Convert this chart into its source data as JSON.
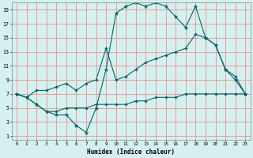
{
  "xlabel": "Humidex (Indice chaleur)",
  "bg_color": "#d6f0f0",
  "grid_color": "#e89090",
  "line_color": "#006666",
  "xlim": [
    -0.5,
    23.5
  ],
  "ylim": [
    0.5,
    20.0
  ],
  "xticks": [
    0,
    1,
    2,
    3,
    4,
    5,
    6,
    7,
    8,
    9,
    10,
    11,
    12,
    13,
    14,
    15,
    16,
    17,
    18,
    19,
    20,
    21,
    22,
    23
  ],
  "yticks": [
    1,
    3,
    5,
    7,
    9,
    11,
    13,
    15,
    17,
    19
  ],
  "line1_x": [
    0,
    1,
    2,
    3,
    4,
    5,
    6,
    7,
    8,
    9,
    10,
    11,
    12,
    13,
    14,
    15,
    16,
    17,
    18,
    19,
    20,
    21,
    22,
    23
  ],
  "line1_y": [
    7,
    6.5,
    5.5,
    4.5,
    4.0,
    4.0,
    2.5,
    1.5,
    5.0,
    10.5,
    18.5,
    19.5,
    20.0,
    19.5,
    20.0,
    19.5,
    18.0,
    16.5,
    19.5,
    15.0,
    14.0,
    10.5,
    9.0,
    7.0
  ],
  "line2_x": [
    0,
    1,
    2,
    3,
    4,
    5,
    6,
    7,
    8,
    9,
    10,
    11,
    12,
    13,
    14,
    15,
    16,
    17,
    18,
    19,
    20,
    21,
    22,
    23
  ],
  "line2_y": [
    7.0,
    6.5,
    7.5,
    7.5,
    8.0,
    8.5,
    7.5,
    8.5,
    9.0,
    13.5,
    9.0,
    9.5,
    10.5,
    11.5,
    12.0,
    12.5,
    13.0,
    13.5,
    15.5,
    15.0,
    14.0,
    10.5,
    9.5,
    7.0
  ],
  "line3_x": [
    0,
    1,
    2,
    3,
    4,
    5,
    6,
    7,
    8,
    9,
    10,
    11,
    12,
    13,
    14,
    15,
    16,
    17,
    18,
    19,
    20,
    21,
    22,
    23
  ],
  "line3_y": [
    7.0,
    6.5,
    5.5,
    4.5,
    4.5,
    5.0,
    5.0,
    5.0,
    5.5,
    5.5,
    5.5,
    5.5,
    6.0,
    6.0,
    6.5,
    6.5,
    6.5,
    7.0,
    7.0,
    7.0,
    7.0,
    7.0,
    7.0,
    7.0
  ]
}
